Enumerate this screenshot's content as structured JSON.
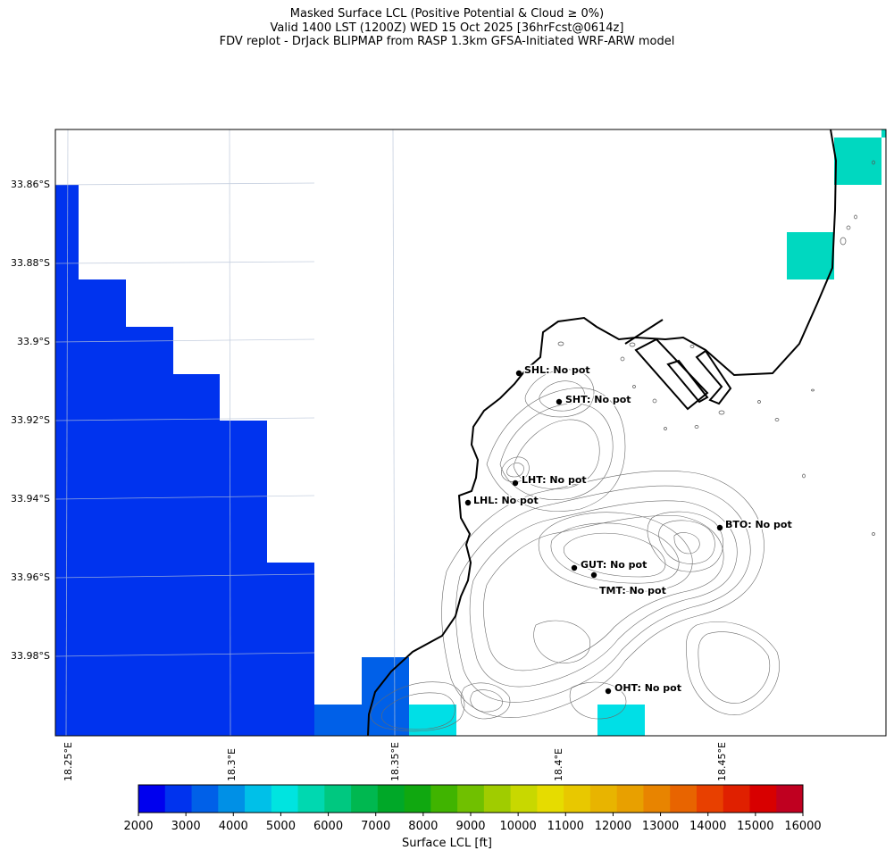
{
  "title": {
    "line1": "Masked Surface LCL (Positive Potential & Cloud ≥ 0%)",
    "line2": "Valid 1400 LST (1200Z) WED 15 Oct 2025 [36hrFcst@0614z]",
    "line3": "FDV replot - DrJack BLIPMAP from RASP 1.3km GFSA-Initiated WRF-ARW model"
  },
  "map": {
    "lon_ticks": [
      "18.25°E",
      "18.3°E",
      "18.35°E",
      "18.4°E",
      "18.45°E"
    ],
    "lat_ticks": [
      "33.86°S",
      "33.88°S",
      "33.9°S",
      "33.92°S",
      "33.94°S",
      "33.96°S",
      "33.98°S"
    ],
    "stations": [
      {
        "code": "SHL",
        "label": "SHL: No pot"
      },
      {
        "code": "SHT",
        "label": "SHT: No pot"
      },
      {
        "code": "LHT",
        "label": "LHT: No pot"
      },
      {
        "code": "LHL",
        "label": "LHL: No pot"
      },
      {
        "code": "BTO",
        "label": "BTO: No pot"
      },
      {
        "code": "GUT",
        "label": "GUT: No pot"
      },
      {
        "code": "TMT",
        "label": "TMT: No pot"
      },
      {
        "code": "OHT",
        "label": "OHT: No pot"
      }
    ]
  },
  "colorbar": {
    "label": "Surface LCL [ft]",
    "tick_labels": [
      "2000",
      "3000",
      "4000",
      "5000",
      "6000",
      "7000",
      "8000",
      "9000",
      "10000",
      "11000",
      "12000",
      "13000",
      "14000",
      "15000",
      "16000"
    ],
    "min": 2000,
    "max": 16000,
    "colors": [
      "#0000ee",
      "#0033ee",
      "#0060e8",
      "#0090e6",
      "#00c0e8",
      "#00e4e0",
      "#00d8b0",
      "#00c880",
      "#00b850",
      "#00a828",
      "#10a810",
      "#40b400",
      "#70c000",
      "#a0cc00",
      "#c8d800",
      "#e6dc00",
      "#e8c800",
      "#e8b400",
      "#e8a000",
      "#e88400",
      "#e86400",
      "#e84000",
      "#e02000",
      "#d80000",
      "#c00020"
    ]
  }
}
